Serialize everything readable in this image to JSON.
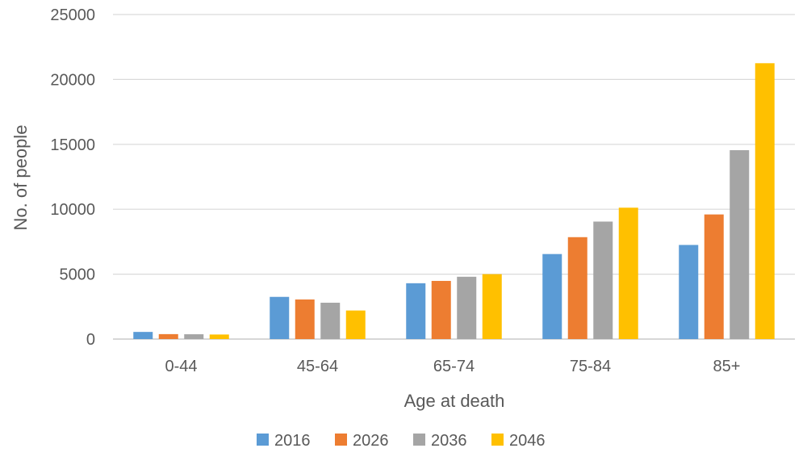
{
  "chart_data": {
    "type": "bar",
    "categories": [
      "0-44",
      "45-64",
      "65-74",
      "75-84",
      "85+"
    ],
    "series": [
      {
        "name": "2016",
        "color": "#5b9bd5",
        "values": [
          550,
          3250,
          4300,
          6550,
          7250
        ]
      },
      {
        "name": "2026",
        "color": "#ed7d31",
        "values": [
          380,
          3050,
          4480,
          7850,
          9600
        ]
      },
      {
        "name": "2036",
        "color": "#a5a5a5",
        "values": [
          370,
          2800,
          4800,
          9050,
          14550
        ]
      },
      {
        "name": "2046",
        "color": "#ffc000",
        "values": [
          350,
          2200,
          5000,
          10120,
          21250
        ]
      }
    ],
    "xlabel": "Age at death",
    "ylabel": "No. of people",
    "ylim": [
      0,
      25000
    ],
    "yticks": [
      0,
      5000,
      10000,
      15000,
      20000,
      25000
    ],
    "grid": true,
    "legend_position": "bottom"
  }
}
